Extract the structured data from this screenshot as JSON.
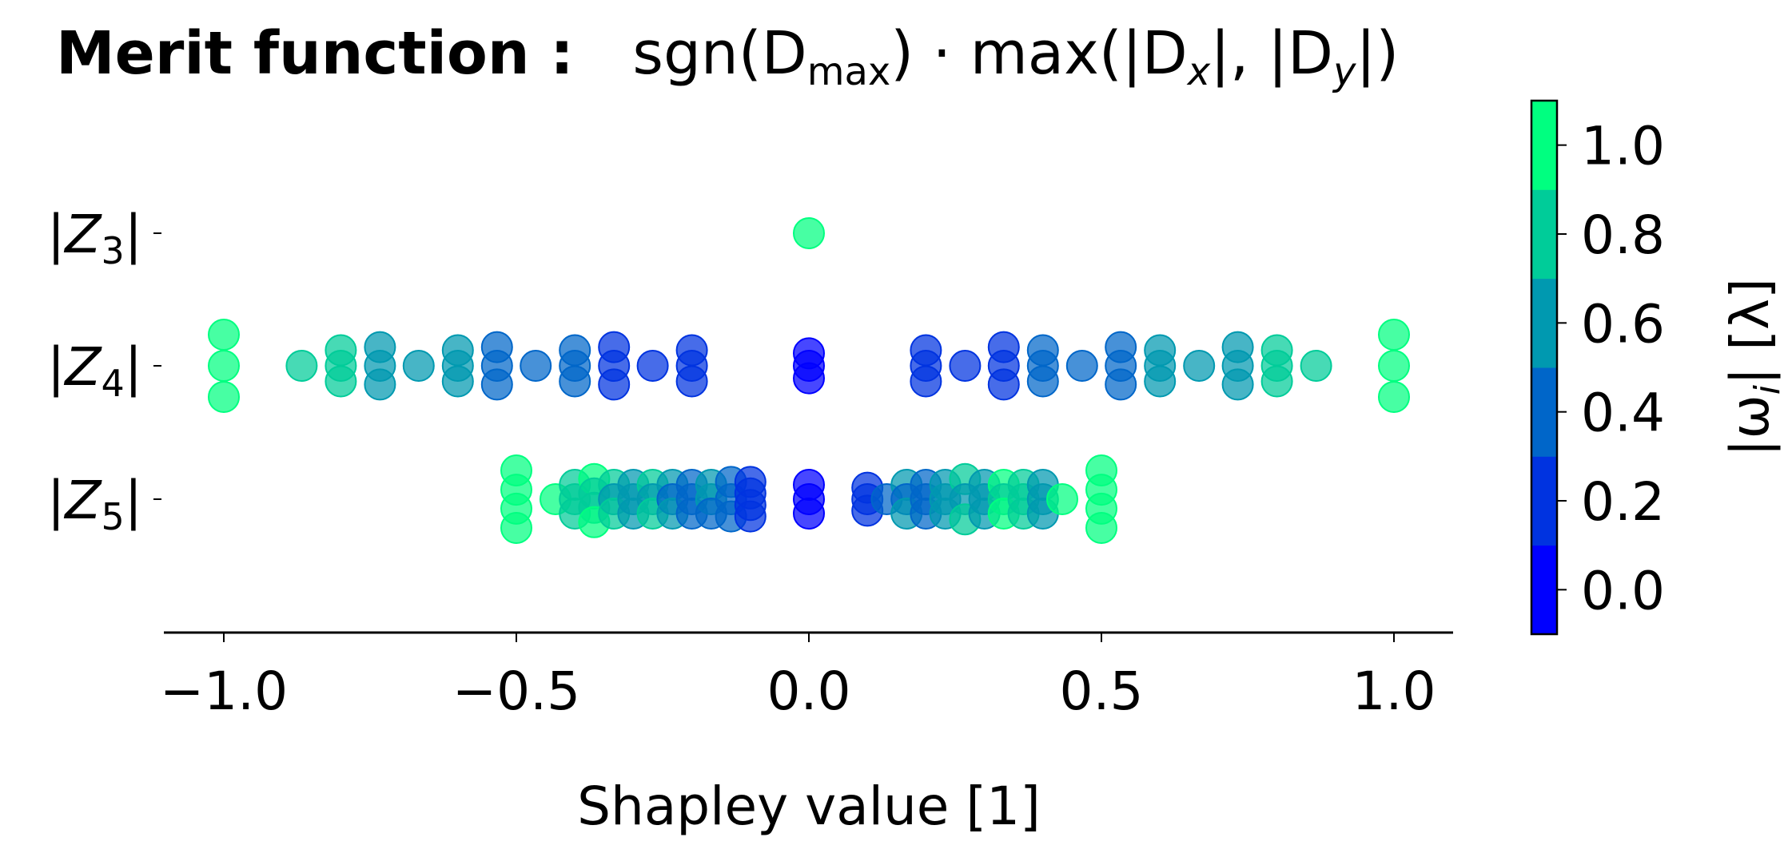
{
  "title": {
    "bold": "Merit function :",
    "expr": {
      "sgn_prefix": "sgn(D",
      "max_sub": "max",
      "mid": ") · max(|D",
      "x_sub": "x",
      "sep": "|, |D",
      "y_sub": "y",
      "end": "|)"
    }
  },
  "colorbar": {
    "label": "|ω",
    "label_sub": "i",
    "label_unit": "| [λ]",
    "ticks": [
      "0.0",
      "0.2",
      "0.4",
      "0.6",
      "0.8",
      "1.0"
    ],
    "range": [
      -0.1,
      1.1
    ],
    "band_colors": [
      "#0000ff",
      "#0033e0",
      "#0066c9",
      "#0099b0",
      "#00cc99",
      "#00ff80"
    ]
  },
  "chart_data": {
    "type": "scatter",
    "xlabel": "Shapley value [1]",
    "xlim": [
      -1.1,
      1.1
    ],
    "xticks": [
      "−1.0",
      "−0.5",
      "0.0",
      "0.5",
      "1.0"
    ],
    "xtick_values": [
      -1.0,
      -0.5,
      0.0,
      0.5,
      1.0
    ],
    "categories": [
      "|Z3|",
      "|Z4|",
      "|Z5|"
    ],
    "category_labels": [
      {
        "base": "|Z",
        "sub": "3",
        "end": "|"
      },
      {
        "base": "|Z",
        "sub": "4",
        "end": "|"
      },
      {
        "base": "|Z",
        "sub": "5",
        "end": "|"
      }
    ],
    "series": [
      {
        "category": "|Z3|",
        "points": [
          {
            "x": 0.0,
            "c": 1.0,
            "row": 0
          }
        ]
      },
      {
        "category": "|Z4|",
        "points": [
          {
            "x": -1.0,
            "c": 1.0,
            "row": 1
          },
          {
            "x": -1.0,
            "c": 1.0,
            "row": 0
          },
          {
            "x": -1.0,
            "c": 1.0,
            "row": -1
          },
          {
            "x": -0.867,
            "c": 0.8,
            "row": 0
          },
          {
            "x": -0.8,
            "c": 0.8,
            "row": 0.5
          },
          {
            "x": -0.8,
            "c": 0.8,
            "row": 0
          },
          {
            "x": -0.8,
            "c": 0.8,
            "row": -0.5
          },
          {
            "x": -0.733,
            "c": 0.6,
            "row": 0.6
          },
          {
            "x": -0.733,
            "c": 0.6,
            "row": 0
          },
          {
            "x": -0.733,
            "c": 0.6,
            "row": -0.6
          },
          {
            "x": -0.667,
            "c": 0.6,
            "row": 0
          },
          {
            "x": -0.6,
            "c": 0.6,
            "row": 0.5
          },
          {
            "x": -0.6,
            "c": 0.6,
            "row": 0
          },
          {
            "x": -0.6,
            "c": 0.6,
            "row": -0.5
          },
          {
            "x": -0.533,
            "c": 0.4,
            "row": 0.6
          },
          {
            "x": -0.533,
            "c": 0.4,
            "row": 0
          },
          {
            "x": -0.533,
            "c": 0.4,
            "row": -0.6
          },
          {
            "x": -0.467,
            "c": 0.4,
            "row": 0
          },
          {
            "x": -0.4,
            "c": 0.4,
            "row": 0.5
          },
          {
            "x": -0.4,
            "c": 0.4,
            "row": 0
          },
          {
            "x": -0.4,
            "c": 0.4,
            "row": -0.5
          },
          {
            "x": -0.333,
            "c": 0.2,
            "row": 0.6
          },
          {
            "x": -0.333,
            "c": 0.2,
            "row": 0
          },
          {
            "x": -0.333,
            "c": 0.2,
            "row": -0.6
          },
          {
            "x": -0.267,
            "c": 0.2,
            "row": 0
          },
          {
            "x": -0.2,
            "c": 0.2,
            "row": 0.5
          },
          {
            "x": -0.2,
            "c": 0.2,
            "row": 0
          },
          {
            "x": -0.2,
            "c": 0.2,
            "row": -0.5
          },
          {
            "x": 0.0,
            "c": 0.0,
            "row": 0.4
          },
          {
            "x": 0.0,
            "c": 0.0,
            "row": 0
          },
          {
            "x": 0.0,
            "c": 0.0,
            "row": -0.4
          },
          {
            "x": 0.2,
            "c": 0.2,
            "row": 0.5
          },
          {
            "x": 0.2,
            "c": 0.2,
            "row": 0
          },
          {
            "x": 0.2,
            "c": 0.2,
            "row": -0.5
          },
          {
            "x": 0.267,
            "c": 0.2,
            "row": 0
          },
          {
            "x": 0.333,
            "c": 0.2,
            "row": 0.6
          },
          {
            "x": 0.333,
            "c": 0.2,
            "row": 0
          },
          {
            "x": 0.333,
            "c": 0.2,
            "row": -0.6
          },
          {
            "x": 0.4,
            "c": 0.4,
            "row": 0.5
          },
          {
            "x": 0.4,
            "c": 0.4,
            "row": 0
          },
          {
            "x": 0.4,
            "c": 0.4,
            "row": -0.5
          },
          {
            "x": 0.467,
            "c": 0.4,
            "row": 0
          },
          {
            "x": 0.533,
            "c": 0.4,
            "row": 0.6
          },
          {
            "x": 0.533,
            "c": 0.4,
            "row": 0
          },
          {
            "x": 0.533,
            "c": 0.4,
            "row": -0.6
          },
          {
            "x": 0.6,
            "c": 0.6,
            "row": 0.5
          },
          {
            "x": 0.6,
            "c": 0.6,
            "row": 0
          },
          {
            "x": 0.6,
            "c": 0.6,
            "row": -0.5
          },
          {
            "x": 0.667,
            "c": 0.6,
            "row": 0
          },
          {
            "x": 0.733,
            "c": 0.6,
            "row": 0.6
          },
          {
            "x": 0.733,
            "c": 0.6,
            "row": 0
          },
          {
            "x": 0.733,
            "c": 0.6,
            "row": -0.6
          },
          {
            "x": 0.8,
            "c": 0.8,
            "row": 0.5
          },
          {
            "x": 0.8,
            "c": 0.8,
            "row": 0
          },
          {
            "x": 0.8,
            "c": 0.8,
            "row": -0.5
          },
          {
            "x": 0.867,
            "c": 0.8,
            "row": 0
          },
          {
            "x": 1.0,
            "c": 1.0,
            "row": 1
          },
          {
            "x": 1.0,
            "c": 1.0,
            "row": 0
          },
          {
            "x": 1.0,
            "c": 1.0,
            "row": -1
          }
        ]
      },
      {
        "category": "|Z5|",
        "points": [
          {
            "x": -0.5,
            "c": 1.0,
            "row": 1
          },
          {
            "x": -0.5,
            "c": 1.0,
            "row": 0.33
          },
          {
            "x": -0.5,
            "c": 1.0,
            "row": -0.33
          },
          {
            "x": -0.5,
            "c": 1.0,
            "row": -1
          },
          {
            "x": -0.433,
            "c": 0.9,
            "row": 0
          },
          {
            "x": -0.4,
            "c": 0.8,
            "row": 0.5
          },
          {
            "x": -0.4,
            "c": 0.8,
            "row": 0
          },
          {
            "x": -0.4,
            "c": 0.8,
            "row": -0.5
          },
          {
            "x": -0.367,
            "c": 0.9,
            "row": 0.7
          },
          {
            "x": -0.367,
            "c": 0.8,
            "row": 0.2
          },
          {
            "x": -0.367,
            "c": 0.8,
            "row": -0.3
          },
          {
            "x": -0.367,
            "c": 0.9,
            "row": -0.8
          },
          {
            "x": -0.333,
            "c": 0.8,
            "row": 0.5
          },
          {
            "x": -0.333,
            "c": 0.7,
            "row": 0
          },
          {
            "x": -0.333,
            "c": 0.8,
            "row": -0.5
          },
          {
            "x": -0.3,
            "c": 0.6,
            "row": 0.5
          },
          {
            "x": -0.3,
            "c": 0.6,
            "row": 0
          },
          {
            "x": -0.3,
            "c": 0.6,
            "row": -0.5
          },
          {
            "x": -0.267,
            "c": 0.8,
            "row": 0.5
          },
          {
            "x": -0.267,
            "c": 0.7,
            "row": 0
          },
          {
            "x": -0.267,
            "c": 0.8,
            "row": -0.5
          },
          {
            "x": -0.233,
            "c": 0.6,
            "row": 0.5
          },
          {
            "x": -0.233,
            "c": 0.5,
            "row": 0
          },
          {
            "x": -0.233,
            "c": 0.6,
            "row": -0.5
          },
          {
            "x": -0.2,
            "c": 0.3,
            "row": 0.5
          },
          {
            "x": -0.2,
            "c": 0.3,
            "row": 0
          },
          {
            "x": -0.2,
            "c": 0.3,
            "row": -0.5
          },
          {
            "x": -0.167,
            "c": 0.6,
            "row": 0.5
          },
          {
            "x": -0.167,
            "c": 0.6,
            "row": 0
          },
          {
            "x": -0.167,
            "c": 0.5,
            "row": -0.5
          },
          {
            "x": -0.133,
            "c": 0.4,
            "row": 0.6
          },
          {
            "x": -0.133,
            "c": 0.4,
            "row": 0
          },
          {
            "x": -0.133,
            "c": 0.4,
            "row": -0.6
          },
          {
            "x": -0.1,
            "c": 0.1,
            "row": 0.6
          },
          {
            "x": -0.1,
            "c": 0.1,
            "row": 0.2
          },
          {
            "x": -0.1,
            "c": 0.1,
            "row": -0.2
          },
          {
            "x": -0.1,
            "c": 0.1,
            "row": -0.6
          },
          {
            "x": 0.0,
            "c": 0.0,
            "row": 0.5
          },
          {
            "x": 0.0,
            "c": 0.0,
            "row": 0
          },
          {
            "x": 0.0,
            "c": 0.0,
            "row": -0.5
          },
          {
            "x": 0.1,
            "c": 0.1,
            "row": 0.4
          },
          {
            "x": 0.1,
            "c": 0.1,
            "row": 0
          },
          {
            "x": 0.1,
            "c": 0.1,
            "row": -0.4
          },
          {
            "x": 0.133,
            "c": 0.3,
            "row": 0
          },
          {
            "x": 0.167,
            "c": 0.6,
            "row": 0.5
          },
          {
            "x": 0.167,
            "c": 0.5,
            "row": 0
          },
          {
            "x": 0.167,
            "c": 0.6,
            "row": -0.5
          },
          {
            "x": 0.2,
            "c": 0.3,
            "row": 0.5
          },
          {
            "x": 0.2,
            "c": 0.3,
            "row": 0
          },
          {
            "x": 0.2,
            "c": 0.3,
            "row": -0.5
          },
          {
            "x": 0.233,
            "c": 0.6,
            "row": 0.5
          },
          {
            "x": 0.233,
            "c": 0.6,
            "row": 0
          },
          {
            "x": 0.233,
            "c": 0.6,
            "row": -0.5
          },
          {
            "x": 0.267,
            "c": 0.8,
            "row": 0.7
          },
          {
            "x": 0.267,
            "c": 0.7,
            "row": 0
          },
          {
            "x": 0.267,
            "c": 0.8,
            "row": -0.7
          },
          {
            "x": 0.3,
            "c": 0.6,
            "row": 0.5
          },
          {
            "x": 0.3,
            "c": 0.6,
            "row": 0
          },
          {
            "x": 0.3,
            "c": 0.6,
            "row": -0.5
          },
          {
            "x": 0.333,
            "c": 0.9,
            "row": 0.5
          },
          {
            "x": 0.333,
            "c": 0.8,
            "row": 0
          },
          {
            "x": 0.333,
            "c": 0.9,
            "row": -0.5
          },
          {
            "x": 0.367,
            "c": 0.8,
            "row": 0.5
          },
          {
            "x": 0.367,
            "c": 0.8,
            "row": 0
          },
          {
            "x": 0.367,
            "c": 0.8,
            "row": -0.5
          },
          {
            "x": 0.4,
            "c": 0.7,
            "row": 0.5
          },
          {
            "x": 0.4,
            "c": 0.7,
            "row": 0
          },
          {
            "x": 0.4,
            "c": 0.7,
            "row": -0.5
          },
          {
            "x": 0.433,
            "c": 0.9,
            "row": 0
          },
          {
            "x": 0.5,
            "c": 1.0,
            "row": 1
          },
          {
            "x": 0.5,
            "c": 1.0,
            "row": 0.33
          },
          {
            "x": 0.5,
            "c": 1.0,
            "row": -0.33
          },
          {
            "x": 0.5,
            "c": 1.0,
            "row": -1
          }
        ]
      }
    ]
  }
}
